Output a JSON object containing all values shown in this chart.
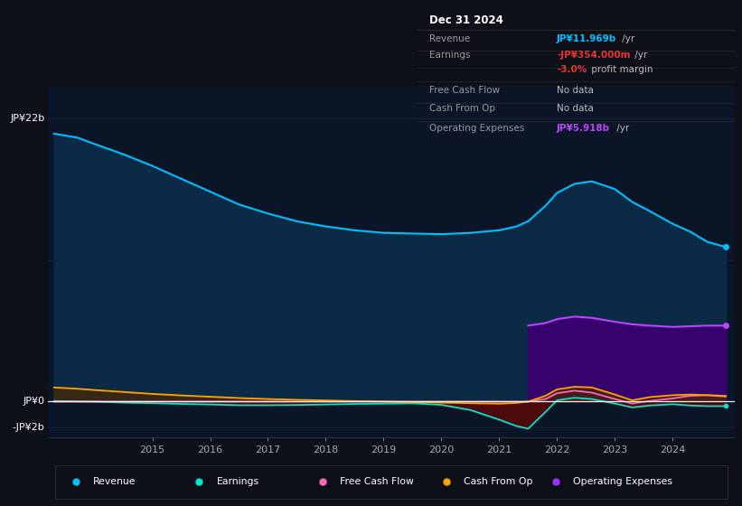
{
  "bg_color": "#0d1117",
  "plot_bg_color": "#0a1628",
  "y_label_top": "JP¥22b",
  "y_label_zero": "JP¥0",
  "y_label_neg": "-JP¥2b",
  "ylim": [
    -2.8,
    24.5
  ],
  "info_box": {
    "title": "Dec 31 2024",
    "rows": [
      {
        "label": "Revenue",
        "value_colored": "JP¥11.969b",
        "value_plain": " /yr",
        "value_color": "#00bfff"
      },
      {
        "label": "Earnings",
        "value_colored": "-JP¥354.000m",
        "value_plain": " /yr",
        "value_color": "#ee3333"
      },
      {
        "label": "",
        "value_colored": "-3.0%",
        "value_plain": " profit margin",
        "value_color": "#ee3333"
      },
      {
        "label": "Free Cash Flow",
        "value_colored": "",
        "value_plain": "No data",
        "value_color": "#666666"
      },
      {
        "label": "Cash From Op",
        "value_colored": "",
        "value_plain": "No data",
        "value_color": "#666666"
      },
      {
        "label": "Operating Expenses",
        "value_colored": "JP¥5.918b",
        "value_plain": " /yr",
        "value_color": "#bb44ff"
      }
    ]
  },
  "x_years": [
    2013.3,
    2013.7,
    2014.0,
    2014.5,
    2015.0,
    2015.5,
    2016.0,
    2016.5,
    2017.0,
    2017.5,
    2018.0,
    2018.5,
    2019.0,
    2019.5,
    2020.0,
    2020.5,
    2021.0,
    2021.3,
    2021.5,
    2021.8,
    2022.0,
    2022.3,
    2022.6,
    2023.0,
    2023.3,
    2023.6,
    2024.0,
    2024.3,
    2024.6,
    2024.92
  ],
  "revenue": [
    20.8,
    20.5,
    20.0,
    19.2,
    18.3,
    17.3,
    16.3,
    15.3,
    14.6,
    14.0,
    13.6,
    13.3,
    13.1,
    13.05,
    13.0,
    13.1,
    13.3,
    13.6,
    14.0,
    15.2,
    16.2,
    16.9,
    17.1,
    16.5,
    15.5,
    14.8,
    13.8,
    13.2,
    12.4,
    12.0
  ],
  "earnings": [
    0.05,
    0.02,
    0.0,
    -0.08,
    -0.12,
    -0.18,
    -0.22,
    -0.28,
    -0.28,
    -0.26,
    -0.22,
    -0.18,
    -0.16,
    -0.13,
    -0.25,
    -0.65,
    -1.4,
    -1.9,
    -2.1,
    -0.8,
    0.1,
    0.3,
    0.2,
    -0.15,
    -0.45,
    -0.3,
    -0.2,
    -0.3,
    -0.35,
    -0.35
  ],
  "free_cash_flow": [
    0.0,
    0.0,
    0.0,
    0.0,
    0.0,
    0.0,
    0.0,
    0.0,
    0.0,
    0.0,
    0.0,
    0.0,
    0.0,
    0.0,
    0.0,
    0.0,
    0.0,
    0.0,
    0.0,
    0.2,
    0.65,
    0.85,
    0.7,
    0.2,
    -0.15,
    0.05,
    0.25,
    0.45,
    0.5,
    0.45
  ],
  "cash_from_op": [
    1.1,
    1.0,
    0.9,
    0.75,
    0.6,
    0.48,
    0.38,
    0.28,
    0.2,
    0.14,
    0.09,
    0.04,
    0.0,
    -0.04,
    -0.08,
    -0.12,
    -0.16,
    -0.1,
    0.0,
    0.45,
    0.95,
    1.15,
    1.1,
    0.55,
    0.1,
    0.35,
    0.5,
    0.55,
    0.5,
    0.4
  ],
  "op_expenses_start_x": 2021.5,
  "op_expenses_x": [
    2021.5,
    2021.8,
    2022.0,
    2022.3,
    2022.6,
    2023.0,
    2023.3,
    2023.6,
    2024.0,
    2024.3,
    2024.6,
    2024.92
  ],
  "op_expenses_y": [
    5.9,
    6.1,
    6.4,
    6.6,
    6.5,
    6.2,
    6.0,
    5.9,
    5.8,
    5.85,
    5.9,
    5.9
  ],
  "legend": [
    {
      "label": "Revenue",
      "color": "#00bfff"
    },
    {
      "label": "Earnings",
      "color": "#00e5cc"
    },
    {
      "label": "Free Cash Flow",
      "color": "#ff69b4"
    },
    {
      "label": "Cash From Op",
      "color": "#ffa500"
    },
    {
      "label": "Operating Expenses",
      "color": "#9b30ff"
    }
  ],
  "x_ticks": [
    2015,
    2016,
    2017,
    2018,
    2019,
    2020,
    2021,
    2022,
    2023,
    2024
  ],
  "x_tick_labels": [
    "2015",
    "2016",
    "2017",
    "2018",
    "2019",
    "2020",
    "2021",
    "2022",
    "2023",
    "2024"
  ]
}
